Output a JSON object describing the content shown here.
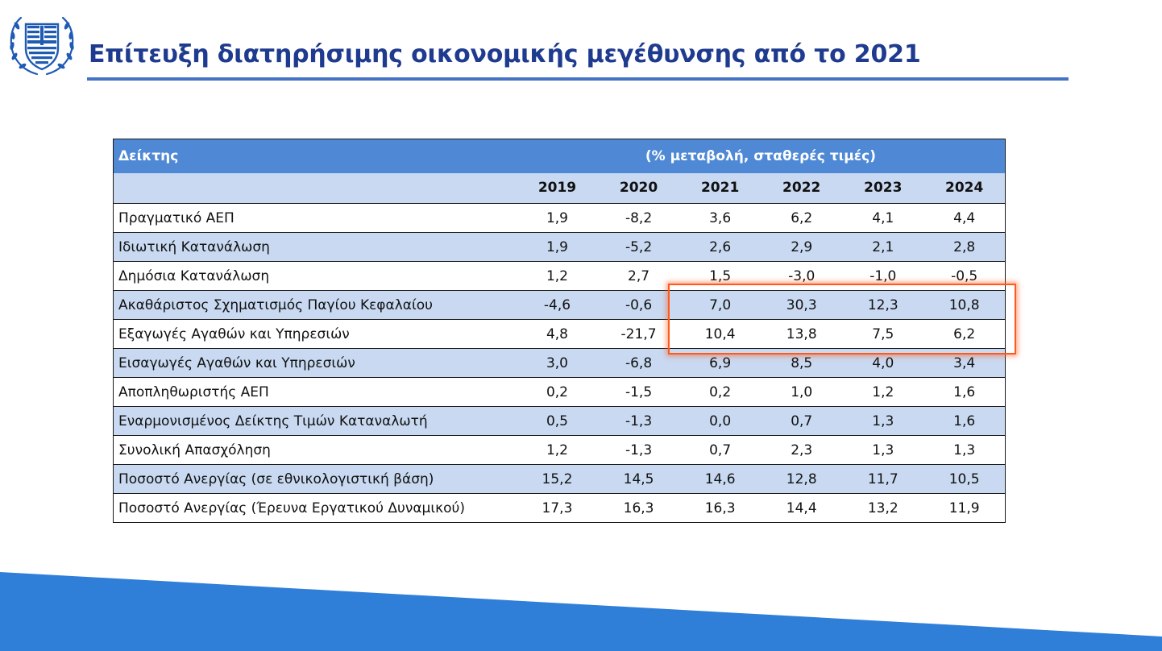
{
  "title": "Επίτευξη διατηρήσιμης οικονομικής μεγέθυνσης από το 2021",
  "colors": {
    "title": "#1f3b8f",
    "rule": "#4472c4",
    "header": "#4f89d6",
    "shade": "#c8d9f1",
    "highlight": "#ff5a1e",
    "band": "#2f7fd8"
  },
  "emblem": {
    "icon": "greek-coat-of-arms-icon"
  },
  "table": {
    "label_header": "Δείκτης",
    "unit_header": "(% μεταβολή, σταθερές τιμές)",
    "years": [
      "2019",
      "2020",
      "2021",
      "2022",
      "2023",
      "2024"
    ],
    "rows": [
      {
        "name": "Πραγματικό ΑΕΠ",
        "values": [
          "1,9",
          "-8,2",
          "3,6",
          "6,2",
          "4,1",
          "4,4"
        ]
      },
      {
        "name": "Ιδιωτική Κατανάλωση",
        "values": [
          "1,9",
          "-5,2",
          "2,6",
          "2,9",
          "2,1",
          "2,8"
        ]
      },
      {
        "name": "Δημόσια Κατανάλωση",
        "values": [
          "1,2",
          "2,7",
          "1,5",
          "-3,0",
          "-1,0",
          "-0,5"
        ]
      },
      {
        "name": "Ακαθάριστος Σχηματισμός Παγίου Κεφαλαίου",
        "values": [
          "-4,6",
          "-0,6",
          "7,0",
          "30,3",
          "12,3",
          "10,8"
        ]
      },
      {
        "name": "Εξαγωγές Αγαθών και Υπηρεσιών",
        "values": [
          "4,8",
          "-21,7",
          "10,4",
          "13,8",
          "7,5",
          "6,2"
        ]
      },
      {
        "name": "Εισαγωγές Αγαθών και Υπηρεσιών",
        "values": [
          "3,0",
          "-6,8",
          "6,9",
          "8,5",
          "4,0",
          "3,4"
        ]
      },
      {
        "name": "Αποπληθωριστής ΑΕΠ",
        "values": [
          "0,2",
          "-1,5",
          "0,2",
          "1,0",
          "1,2",
          "1,6"
        ]
      },
      {
        "name": "Εναρμονισμένος Δείκτης Τιμών Καταναλωτή",
        "values": [
          "0,5",
          "-1,3",
          "0,0",
          "0,7",
          "1,3",
          "1,6"
        ]
      },
      {
        "name": "Συνολική Απασχόληση",
        "values": [
          "1,2",
          "-1,3",
          "0,7",
          "2,3",
          "1,3",
          "1,3"
        ]
      },
      {
        "name": "Ποσοστό Ανεργίας (σε εθνικολογιστική βάση)",
        "values": [
          "15,2",
          "14,5",
          "14,6",
          "12,8",
          "11,7",
          "10,5"
        ]
      },
      {
        "name": "Ποσοστό Ανεργίας (Έρευνα Εργατικού Δυναμικού)",
        "values": [
          "17,3",
          "16,3",
          "16,3",
          "14,4",
          "13,2",
          "11,9"
        ]
      }
    ],
    "highlighted": {
      "rows": [
        "Ακαθάριστος Σχηματισμός Παγίου Κεφαλαίου",
        "Εξαγωγές Αγαθών και Υπηρεσιών"
      ],
      "years": [
        "2021",
        "2022",
        "2023",
        "2024"
      ]
    }
  }
}
